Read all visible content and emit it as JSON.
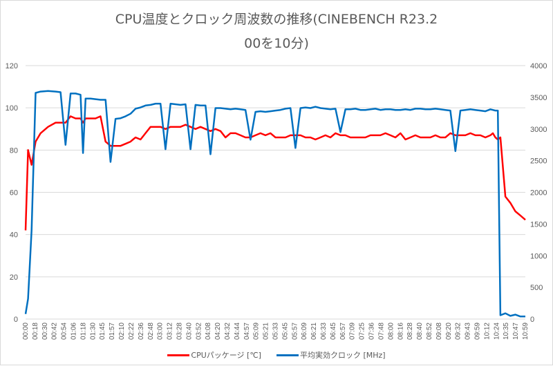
{
  "chart_data": {
    "type": "line",
    "title": "CPU温度とクロック周波数の推移(CINEBENCH R23.200を10分)",
    "title_lines": [
      "CPU温度とクロック周波数の推移(CINEBENCH R23.2",
      "00を10分)"
    ],
    "xlabel": "",
    "ylabel_left": "",
    "ylabel_right": "",
    "ylim_left": [
      0,
      120
    ],
    "ylim_right": [
      0,
      4000
    ],
    "yticks_left": [
      0,
      20,
      40,
      60,
      80,
      100,
      120
    ],
    "yticks_right": [
      0,
      500,
      1000,
      1500,
      2000,
      2500,
      3000,
      3500,
      4000
    ],
    "grid": true,
    "legend_position": "bottom",
    "x_tick_labels": [
      "00:00",
      "00:18",
      "00:30",
      "00:42",
      "00:54",
      "01:06",
      "01:18",
      "01:30",
      "01:45",
      "01:57",
      "02:10",
      "02:22",
      "02:36",
      "02:48",
      "03:00",
      "03:12",
      "03:28",
      "03:40",
      "03:52",
      "04:08",
      "04:20",
      "04:32",
      "04:44",
      "04:57",
      "05:09",
      "05:21",
      "05:33",
      "05:45",
      "05:57",
      "06:09",
      "06:21",
      "06:33",
      "06:45",
      "06:57",
      "07:09",
      "07:25",
      "07:36",
      "07:48",
      "08:00",
      "08:16",
      "08:28",
      "08:40",
      "08:52",
      "09:08",
      "09:20",
      "09:32",
      "09:43",
      "09:59",
      "10:12",
      "10:24",
      "10:35",
      "10:47",
      "10:59"
    ],
    "x_positions": [
      0,
      0.005,
      0.012,
      0.02,
      0.03,
      0.045,
      0.06,
      0.07,
      0.08,
      0.09,
      0.1,
      0.11,
      0.115,
      0.12,
      0.13,
      0.14,
      0.15,
      0.16,
      0.17,
      0.18,
      0.19,
      0.2,
      0.21,
      0.215,
      0.22,
      0.23,
      0.24,
      0.25,
      0.26,
      0.27,
      0.28,
      0.29,
      0.3,
      0.31,
      0.32,
      0.33,
      0.34,
      0.35,
      0.36,
      0.37,
      0.38,
      0.39,
      0.4,
      0.41,
      0.42,
      0.43,
      0.44,
      0.45,
      0.46,
      0.47,
      0.48,
      0.49,
      0.5,
      0.51,
      0.52,
      0.53,
      0.54,
      0.55,
      0.56,
      0.57,
      0.58,
      0.59,
      0.6,
      0.61,
      0.62,
      0.63,
      0.64,
      0.65,
      0.66,
      0.67,
      0.68,
      0.69,
      0.7,
      0.71,
      0.72,
      0.73,
      0.74,
      0.75,
      0.76,
      0.77,
      0.78,
      0.79,
      0.8,
      0.81,
      0.82,
      0.83,
      0.84,
      0.85,
      0.86,
      0.87,
      0.88,
      0.89,
      0.9,
      0.91,
      0.92,
      0.93,
      0.935,
      0.94,
      0.945,
      0.95,
      0.96,
      0.97,
      0.98,
      0.99,
      1.0
    ],
    "series": [
      {
        "name": "CPUパッケージ [℃]",
        "axis": "left",
        "color": "#ff0000",
        "values": [
          42,
          80,
          73,
          84,
          88,
          91,
          93,
          93,
          93,
          96,
          95,
          95,
          93,
          95,
          95,
          95,
          96,
          84,
          82,
          82,
          82,
          83,
          84,
          85,
          86,
          85,
          88,
          91,
          91,
          91,
          90,
          91,
          91,
          91,
          92,
          91,
          90,
          91,
          90,
          89,
          90,
          89,
          86,
          88,
          88,
          87,
          86,
          86,
          87,
          88,
          87,
          88,
          86,
          86,
          86,
          87,
          87,
          87,
          86,
          86,
          85,
          86,
          87,
          86,
          88,
          87,
          87,
          86,
          86,
          86,
          86,
          87,
          87,
          87,
          88,
          87,
          86,
          88,
          85,
          86,
          87,
          86,
          86,
          86,
          87,
          86,
          86,
          88,
          87,
          87,
          87,
          88,
          87,
          87,
          86,
          87,
          88,
          86,
          85,
          86,
          58,
          55,
          51,
          49,
          47
        ]
      },
      {
        "name": "平均実効クロック [MHz]",
        "axis": "right",
        "color": "#0070c0",
        "values": [
          80,
          320,
          1400,
          3570,
          3590,
          3600,
          3590,
          3580,
          2750,
          3560,
          3560,
          3540,
          2620,
          3480,
          3480,
          3470,
          3460,
          3460,
          2480,
          3160,
          3170,
          3200,
          3240,
          3280,
          3320,
          3340,
          3370,
          3380,
          3400,
          3400,
          2680,
          3400,
          3390,
          3380,
          3390,
          2680,
          3380,
          3370,
          3370,
          2600,
          3330,
          3330,
          3320,
          3310,
          3320,
          3310,
          3300,
          2830,
          3270,
          3280,
          3270,
          3280,
          3290,
          3300,
          3320,
          3330,
          2700,
          3330,
          3340,
          3330,
          3350,
          3330,
          3320,
          3310,
          3320,
          2950,
          3310,
          3310,
          3320,
          3300,
          3300,
          3310,
          3320,
          3300,
          3310,
          3310,
          3300,
          3300,
          3310,
          3300,
          3320,
          3320,
          3310,
          3310,
          3320,
          3310,
          3300,
          3290,
          2650,
          3290,
          3300,
          3310,
          3300,
          3290,
          3280,
          3310,
          3300,
          3290,
          3290,
          60,
          90,
          50,
          70,
          40,
          40
        ]
      }
    ]
  },
  "legend": {
    "items": [
      {
        "label": "CPUパッケージ [℃]",
        "color": "#ff0000"
      },
      {
        "label": "平均実効クロック [MHz]",
        "color": "#0070c0"
      }
    ]
  }
}
